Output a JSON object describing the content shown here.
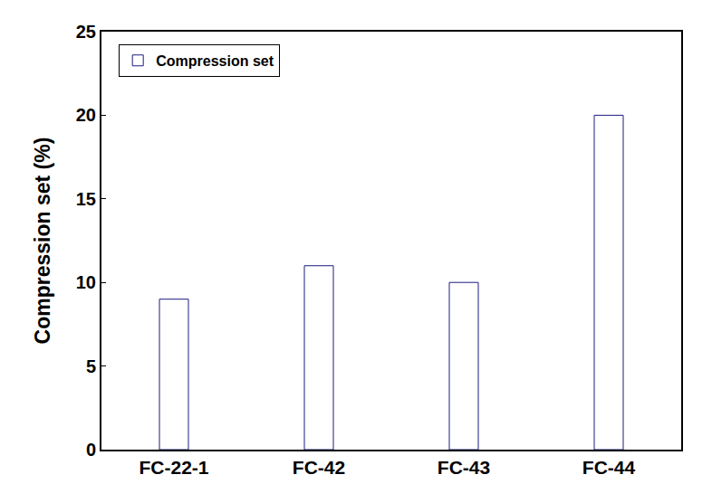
{
  "chart_data": {
    "type": "bar",
    "y_label": "Compression set (%)",
    "categories": [
      "FC-22-1",
      "FC-42",
      "FC-43",
      "FC-44"
    ],
    "series": [
      {
        "name": "Compression set",
        "color": "#1c1c80",
        "values": [
          9,
          11,
          10,
          20
        ]
      }
    ],
    "ylim": [
      0,
      25
    ],
    "yticks": [
      0,
      5,
      10,
      15,
      20,
      25
    ],
    "grid": false,
    "legend": "upper left"
  }
}
